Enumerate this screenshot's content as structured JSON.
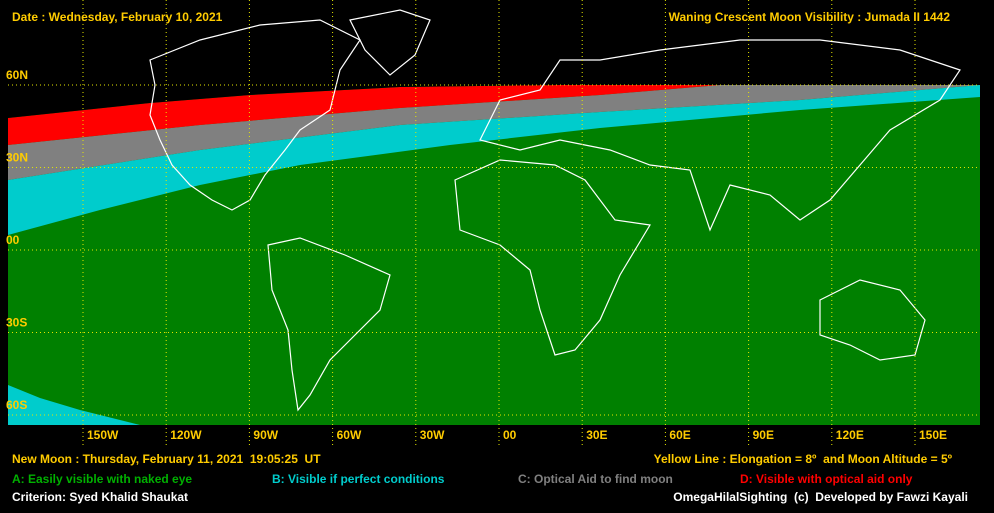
{
  "header": {
    "date": "Date : Wednesday, February 10, 2021",
    "title": "Waning Crescent Moon Visibility : Jumada II 1442"
  },
  "map": {
    "lat_labels": [
      "60N",
      "30N",
      "00",
      "30S",
      "60S"
    ],
    "lon_labels": [
      "150W",
      "120W",
      "90W",
      "60W",
      "30W",
      "00",
      "30E",
      "60E",
      "90E",
      "120E",
      "150E"
    ]
  },
  "footer": {
    "new_moon": "New Moon : Thursday, February 11, 2021  19:05:25  UT",
    "yellow_line": "Yellow Line : Elongation = 8º  and Moon Altitude = 5º",
    "criterion": "Criterion: Syed Khalid Shaukat",
    "credit": "OmegaHilalSighting  (c)  Developed by Fawzi Kayali"
  },
  "legend": [
    {
      "label": "A: Easily visible with naked eye",
      "color": "#008000"
    },
    {
      "label": "B: Visible if perfect conditions",
      "color": "#00cccc"
    },
    {
      "label": "C: Optical Aid to find moon",
      "color": "#808080"
    },
    {
      "label": "D: Visible with optical aid only",
      "color": "#ff0000"
    }
  ]
}
